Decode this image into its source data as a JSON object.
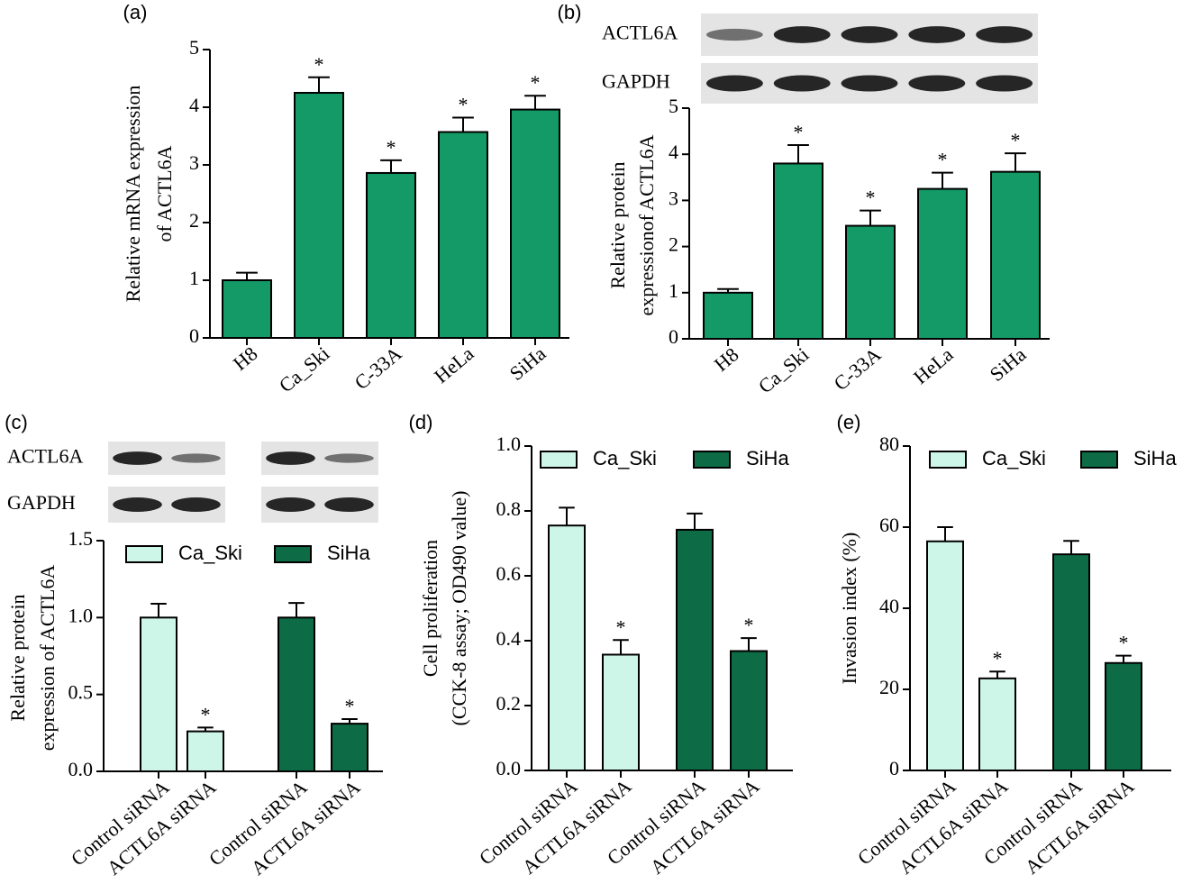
{
  "chart_data": [
    {
      "type": "bar",
      "panel": "(a)",
      "ylabel": [
        "Relative mRNA expression",
        "of ACTL6A"
      ],
      "categories": [
        "H8",
        "Ca_Ski",
        "C-33A",
        "HeLa",
        "SiHa"
      ],
      "series": [
        {
          "name": null,
          "color": "#149a66",
          "values": [
            1.0,
            4.25,
            2.86,
            3.57,
            3.96
          ],
          "errors": [
            0.13,
            0.27,
            0.22,
            0.25,
            0.24
          ],
          "sig_labels": [
            null,
            "*",
            "*",
            "*",
            "*"
          ]
        }
      ],
      "ylim": [
        0,
        5
      ],
      "yticks": [
        0,
        1,
        2,
        3,
        4,
        5
      ]
    },
    {
      "type": "bar",
      "panel": "(b)",
      "ylabel": [
        "Relative protein",
        "expressionof ACTL6A"
      ],
      "blots": [
        "ACTL6A",
        "GAPDH"
      ],
      "categories": [
        "H8",
        "Ca_Ski",
        "C-33A",
        "HeLa",
        "SiHa"
      ],
      "series": [
        {
          "name": null,
          "color": "#149a66",
          "values": [
            1.0,
            3.8,
            2.45,
            3.25,
            3.62
          ],
          "errors": [
            0.08,
            0.4,
            0.33,
            0.35,
            0.4
          ],
          "sig_labels": [
            null,
            "*",
            "*",
            "*",
            "*"
          ]
        }
      ],
      "ylim": [
        0,
        5
      ],
      "yticks": [
        0,
        1,
        2,
        3,
        4,
        5
      ]
    },
    {
      "type": "bar",
      "panel": "(c)",
      "ylabel": [
        "Relative protein",
        "expression of ACTL6A"
      ],
      "blots": [
        "ACTL6A",
        "GAPDH"
      ],
      "categories": [
        "Control siRNA",
        "ACTL6A siRNA",
        "Control siRNA",
        "ACTL6A siRNA"
      ],
      "series": [
        {
          "name": "Ca_Ski",
          "color": "#cdf6e8",
          "values": [
            1.0,
            0.26,
            null,
            null
          ],
          "errors": [
            0.09,
            0.025,
            null,
            null
          ],
          "sig_labels": [
            null,
            "*",
            null,
            null
          ]
        },
        {
          "name": "SiHa",
          "color": "#0d6b45",
          "values": [
            null,
            null,
            1.0,
            0.31
          ],
          "errors": [
            null,
            null,
            0.095,
            0.03
          ],
          "sig_labels": [
            null,
            null,
            null,
            "*"
          ]
        }
      ],
      "ylim": [
        0,
        1.5
      ],
      "yticks": [
        {
          "value": 0,
          "label": "0.0"
        },
        {
          "value": 0.5,
          "label": "0.5"
        },
        {
          "value": 1,
          "label": "1.0"
        },
        {
          "value": 1.5,
          "label": "1.5"
        }
      ]
    },
    {
      "type": "bar",
      "panel": "(d)",
      "ylabel": [
        "Cell proliferation",
        "(CCK-8 assay; OD490 value)"
      ],
      "categories": [
        "Control siRNA",
        "ACTL6A siRNA",
        "Control siRNA",
        "ACTL6A siRNA"
      ],
      "series": [
        {
          "name": "Ca_Ski",
          "color": "#cdf6e8",
          "values": [
            0.755,
            0.357,
            null,
            null
          ],
          "errors": [
            0.055,
            0.045,
            null,
            null
          ],
          "sig_labels": [
            null,
            "*",
            null,
            null
          ]
        },
        {
          "name": "SiHa",
          "color": "#0d6b45",
          "values": [
            null,
            null,
            0.742,
            0.368
          ],
          "errors": [
            null,
            null,
            0.05,
            0.04
          ],
          "sig_labels": [
            null,
            null,
            null,
            "*"
          ]
        }
      ],
      "ylim": [
        0,
        1
      ],
      "yticks": [
        {
          "value": 0,
          "label": "0.0"
        },
        {
          "value": 0.2,
          "label": "0.2"
        },
        {
          "value": 0.4,
          "label": "0.4"
        },
        {
          "value": 0.6,
          "label": "0.6"
        },
        {
          "value": 0.8,
          "label": "0.8"
        },
        {
          "value": 1,
          "label": "1.0"
        }
      ]
    },
    {
      "type": "bar",
      "panel": "(e)",
      "ylabel": [
        "Invasion index (%)"
      ],
      "categories": [
        "Control siRNA",
        "ACTL6A siRNA",
        "Control siRNA",
        "ACTL6A siRNA"
      ],
      "series": [
        {
          "name": "Ca_Ski",
          "color": "#cdf6e8",
          "values": [
            56.5,
            22.7,
            null,
            null
          ],
          "errors": [
            3.5,
            1.7,
            null,
            null
          ],
          "sig_labels": [
            null,
            "*",
            null,
            null
          ]
        },
        {
          "name": "SiHa",
          "color": "#0d6b45",
          "values": [
            null,
            null,
            53.3,
            26.5
          ],
          "errors": [
            null,
            null,
            3.3,
            1.8
          ],
          "sig_labels": [
            null,
            null,
            null,
            "*"
          ]
        }
      ],
      "ylim": [
        0,
        80
      ],
      "yticks": [
        0,
        20,
        40,
        60,
        80
      ]
    }
  ]
}
